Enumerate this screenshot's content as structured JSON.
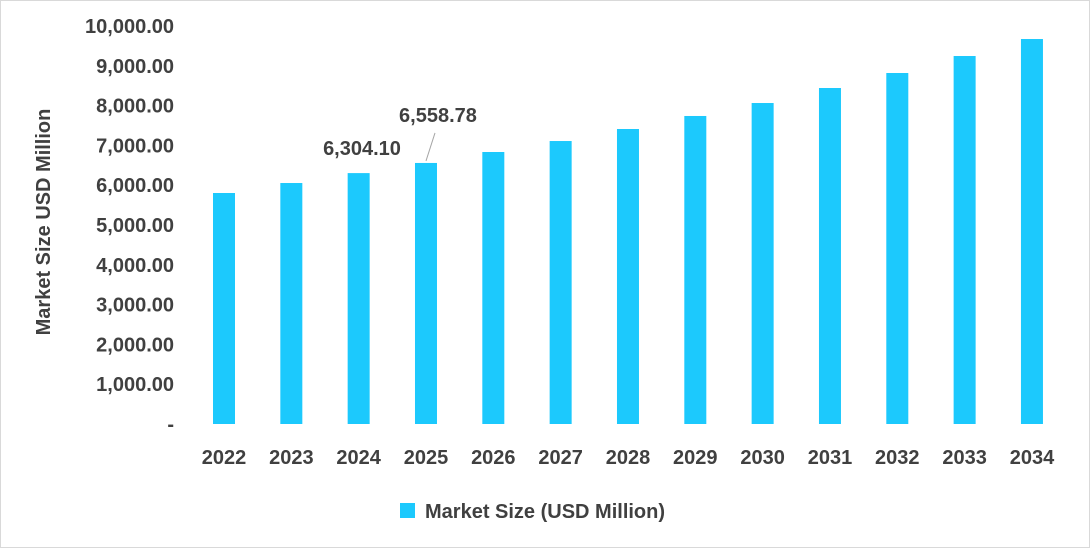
{
  "chart_data": {
    "type": "bar",
    "title": "",
    "xlabel": "",
    "ylabel": "Market Size USD Million",
    "categories": [
      "2022",
      "2023",
      "2024",
      "2025",
      "2026",
      "2027",
      "2028",
      "2029",
      "2030",
      "2031",
      "2032",
      "2033",
      "2034"
    ],
    "series": [
      {
        "name": "Market Size (USD Million)",
        "values": [
          5804,
          6055,
          6304.1,
          6558.78,
          6834,
          7110,
          7412,
          7739,
          8065,
          8442,
          8819,
          9246,
          9673
        ],
        "color": "#1CC9FD"
      }
    ],
    "ylim": [
      0,
      10000
    ],
    "yticks": [
      0,
      1000,
      2000,
      3000,
      4000,
      5000,
      6000,
      7000,
      8000,
      9000,
      10000
    ],
    "ytick_labels": [
      "-",
      "1,000.00",
      "2,000.00",
      "3,000.00",
      "4,000.00",
      "5,000.00",
      "6,000.00",
      "7,000.00",
      "8,000.00",
      "9,000.00",
      "10,000.00"
    ],
    "data_labels": [
      {
        "category": "2024",
        "text": "6,304.10"
      },
      {
        "category": "2025",
        "text": "6,558.78"
      }
    ],
    "grid": false,
    "legend": "bottom"
  }
}
